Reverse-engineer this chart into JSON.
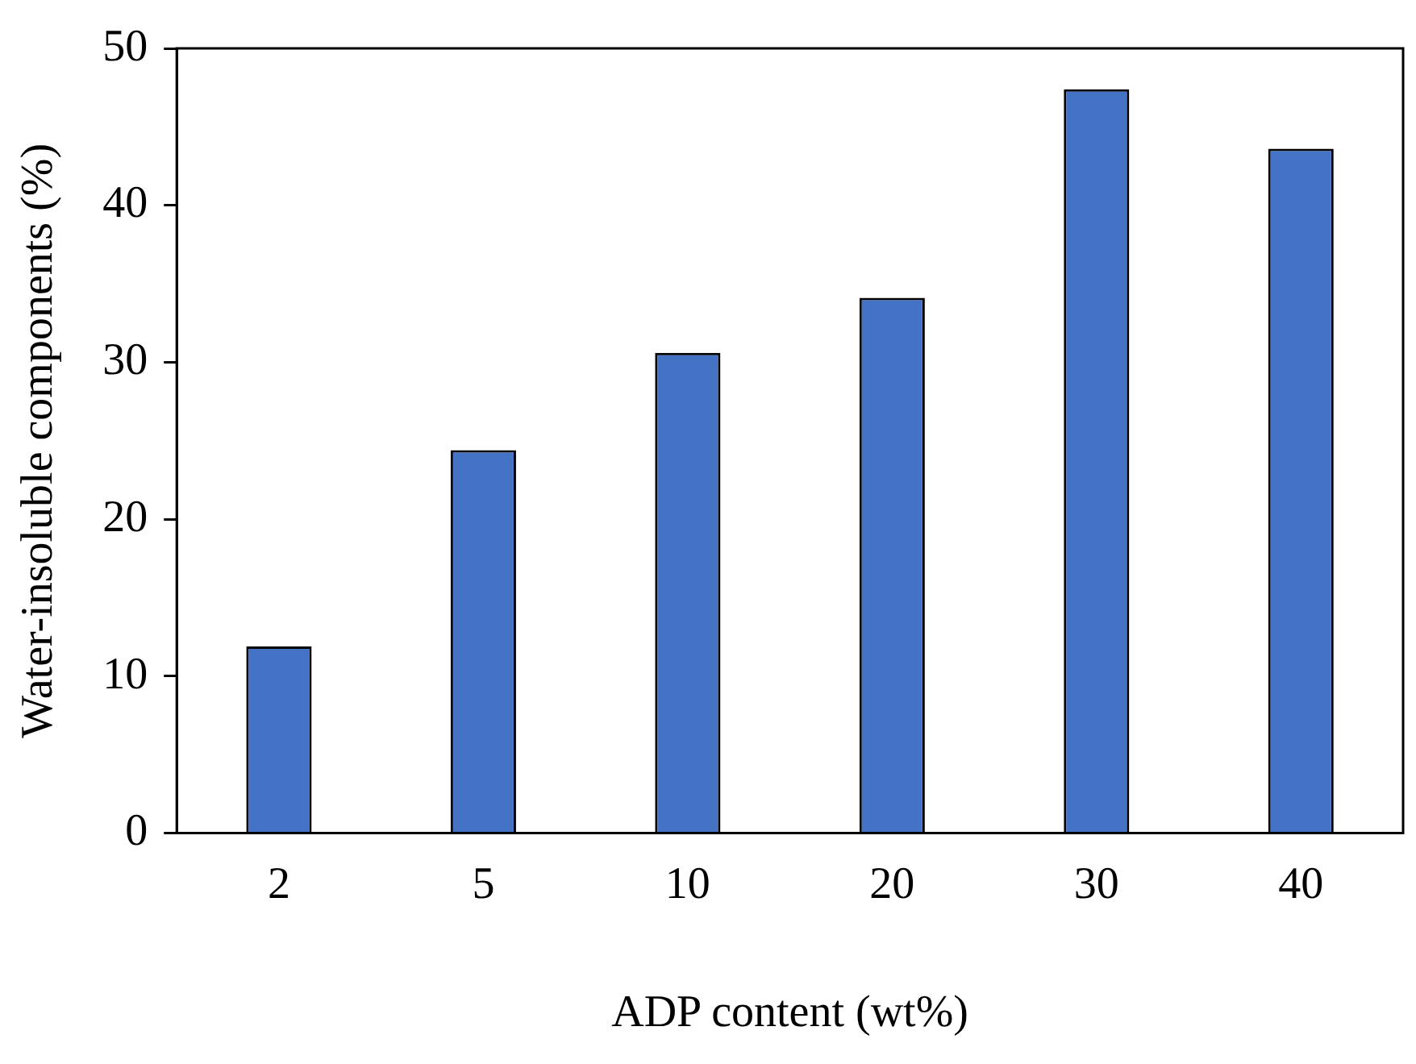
{
  "chart_data": {
    "type": "bar",
    "xlabel": "ADP content (wt%)",
    "ylabel": "Water-insoluble components (%)",
    "categories": [
      "2",
      "5",
      "10",
      "20",
      "30",
      "40"
    ],
    "values": [
      11.9,
      24.4,
      30.6,
      34.1,
      47.4,
      43.6
    ],
    "color": "#4472c4",
    "ylim": [
      0,
      50
    ],
    "yticks": [
      0,
      10,
      20,
      30,
      40,
      50
    ],
    "grid": false,
    "legend": false
  }
}
